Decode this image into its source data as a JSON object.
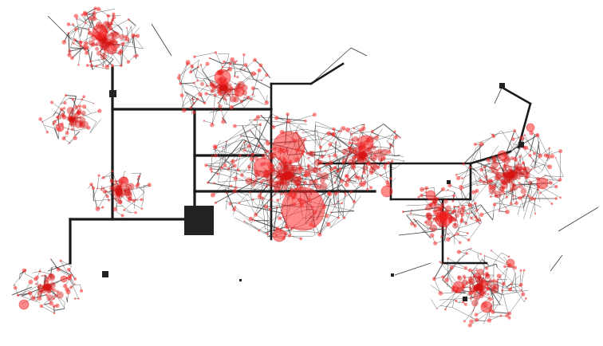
{
  "diagram": {
    "type": "network-graph",
    "background_color": "#ffffff",
    "colors": {
      "trunk": "#1a1a1a",
      "branch": "#3a3a3a",
      "node": "#ff2a2a",
      "node_dark": "#d81414",
      "hub": "#222222"
    },
    "legend": null,
    "title": ""
  }
}
